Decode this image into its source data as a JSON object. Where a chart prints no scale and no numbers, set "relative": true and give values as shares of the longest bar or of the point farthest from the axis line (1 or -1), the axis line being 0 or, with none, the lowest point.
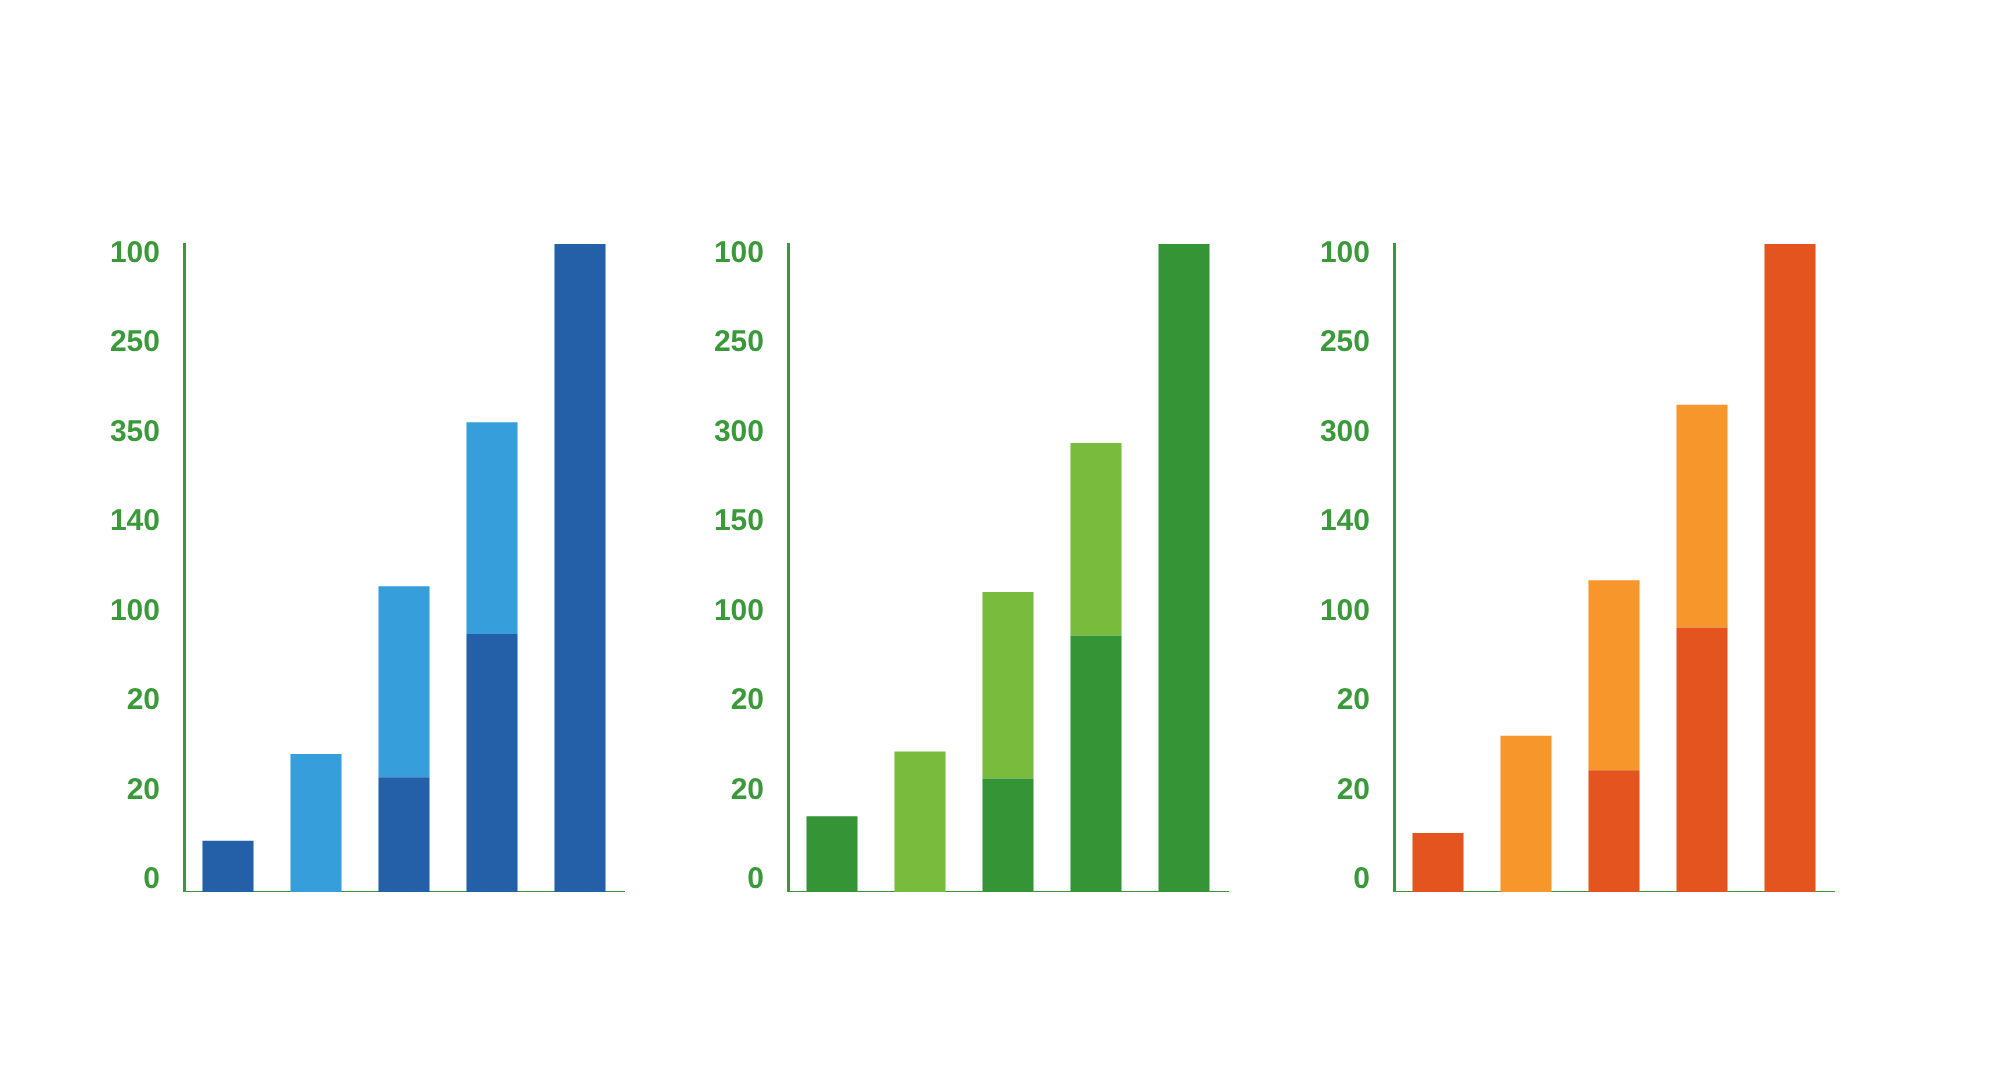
{
  "chart_data": [
    {
      "type": "bar",
      "relative": true,
      "stacked": true,
      "categories": [
        null,
        null,
        null,
        null,
        null
      ],
      "legend": false,
      "grid": false,
      "annotations": [
        "100",
        "250",
        "350",
        "140",
        "100",
        "20",
        "20",
        "0"
      ],
      "series": [
        {
          "color": "#2460a7",
          "values": [
            0.079,
            null,
            0.177,
            0.398,
            1
          ]
        },
        {
          "color": "#369fdb",
          "values": [
            null,
            0.213,
            0.295,
            0.327,
            null
          ]
        }
      ]
    },
    {
      "type": "bar",
      "relative": true,
      "stacked": true,
      "categories": [
        null,
        null,
        null,
        null,
        null
      ],
      "legend": false,
      "grid": false,
      "annotations": [
        "100",
        "250",
        "300",
        "150",
        "100",
        "20",
        "20",
        "0"
      ],
      "series": [
        {
          "color": "#359436",
          "values": [
            0.117,
            null,
            0.175,
            0.396,
            1
          ]
        },
        {
          "color": "#79bc3d",
          "values": [
            null,
            0.217,
            0.288,
            0.297,
            null
          ]
        }
      ]
    },
    {
      "type": "bar",
      "relative": true,
      "stacked": true,
      "categories": [
        null,
        null,
        null,
        null,
        null
      ],
      "legend": false,
      "grid": false,
      "annotations": [
        "100",
        "250",
        "300",
        "140",
        "100",
        "20",
        "20",
        "0"
      ],
      "series": [
        {
          "color": "#e3541f",
          "values": [
            0.091,
            null,
            0.188,
            0.408,
            1
          ]
        },
        {
          "color": "#f7962a",
          "values": [
            null,
            0.241,
            0.293,
            0.344,
            null
          ]
        }
      ]
    }
  ]
}
